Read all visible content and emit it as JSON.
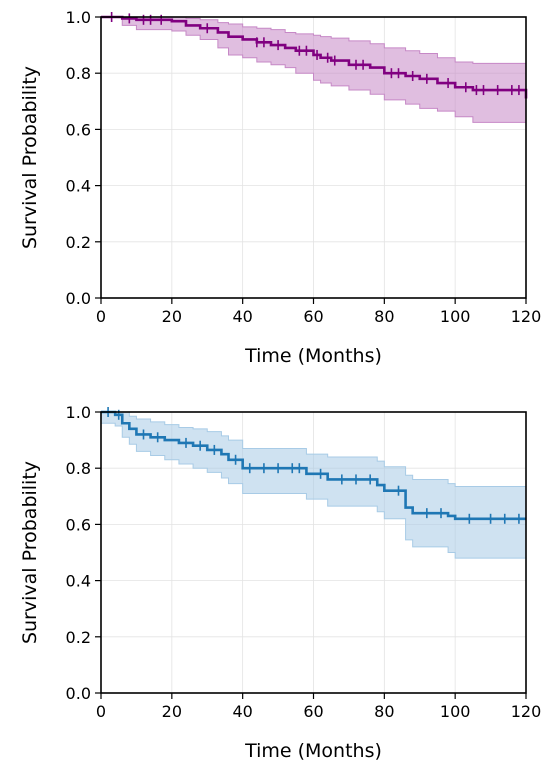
{
  "chart_data": [
    {
      "type": "line",
      "title": "",
      "xlabel": "Time (Months)",
      "ylabel": "Survival Probability",
      "xlim": [
        0,
        120
      ],
      "ylim": [
        0,
        1.0
      ],
      "xticks": [
        "0",
        "20",
        "40",
        "60",
        "80",
        "100",
        "120"
      ],
      "yticks": [
        "0.0",
        "0.2",
        "0.4",
        "0.6",
        "0.8",
        "1.0"
      ],
      "grid": true,
      "color": "#800080",
      "band_color": "#c688c6",
      "series": [
        {
          "step": true,
          "x": [
            0,
            6,
            10,
            20,
            24,
            28,
            33,
            36,
            40,
            44,
            48,
            52,
            55,
            60,
            62,
            65,
            70,
            76,
            80,
            86,
            90,
            95,
            100,
            105,
            110,
            120
          ],
          "y": [
            1.0,
            0.995,
            0.99,
            0.985,
            0.97,
            0.96,
            0.945,
            0.93,
            0.92,
            0.91,
            0.9,
            0.89,
            0.88,
            0.865,
            0.855,
            0.845,
            0.83,
            0.82,
            0.8,
            0.79,
            0.78,
            0.765,
            0.75,
            0.74,
            0.74,
            0.71
          ],
          "lower": [
            1.0,
            0.97,
            0.955,
            0.95,
            0.935,
            0.92,
            0.89,
            0.865,
            0.855,
            0.84,
            0.83,
            0.82,
            0.8,
            0.775,
            0.765,
            0.755,
            0.74,
            0.725,
            0.705,
            0.69,
            0.675,
            0.665,
            0.645,
            0.625,
            0.625,
            0.58
          ],
          "upper": [
            1.0,
            1.0,
            1.0,
            1.0,
            0.995,
            0.99,
            0.98,
            0.975,
            0.965,
            0.96,
            0.955,
            0.945,
            0.94,
            0.935,
            0.93,
            0.925,
            0.915,
            0.905,
            0.89,
            0.88,
            0.87,
            0.855,
            0.84,
            0.835,
            0.835,
            0.82
          ],
          "censored": [
            3,
            8,
            12,
            14,
            17,
            30,
            44,
            46,
            50,
            56,
            58,
            61,
            64,
            66,
            72,
            74,
            82,
            84,
            88,
            92,
            98,
            103,
            106,
            108,
            112,
            116,
            118
          ]
        }
      ]
    },
    {
      "type": "line",
      "title": "",
      "xlabel": "Time (Months)",
      "ylabel": "Survival Probability",
      "xlim": [
        0,
        120
      ],
      "ylim": [
        0,
        1.0
      ],
      "xticks": [
        "0",
        "20",
        "40",
        "60",
        "80",
        "100",
        "120"
      ],
      "yticks": [
        "0.0",
        "0.2",
        "0.4",
        "0.6",
        "0.8",
        "1.0"
      ],
      "grid": true,
      "color": "#1f77b4",
      "band_color": "#a8cbe6",
      "series": [
        {
          "step": true,
          "x": [
            0,
            4,
            6,
            8,
            10,
            14,
            18,
            22,
            26,
            30,
            34,
            36,
            40,
            58,
            64,
            78,
            80,
            86,
            88,
            98,
            100,
            120
          ],
          "y": [
            1.0,
            0.99,
            0.96,
            0.94,
            0.92,
            0.91,
            0.9,
            0.89,
            0.88,
            0.865,
            0.85,
            0.83,
            0.8,
            0.78,
            0.76,
            0.74,
            0.72,
            0.66,
            0.64,
            0.63,
            0.62,
            0.62
          ],
          "lower": [
            0.96,
            0.95,
            0.91,
            0.885,
            0.86,
            0.845,
            0.83,
            0.815,
            0.8,
            0.785,
            0.765,
            0.745,
            0.71,
            0.69,
            0.665,
            0.645,
            0.62,
            0.545,
            0.52,
            0.5,
            0.48,
            0.48
          ],
          "upper": [
            1.0,
            1.0,
            1.0,
            0.985,
            0.975,
            0.965,
            0.955,
            0.945,
            0.94,
            0.93,
            0.915,
            0.9,
            0.87,
            0.85,
            0.84,
            0.825,
            0.805,
            0.775,
            0.76,
            0.745,
            0.735,
            0.735
          ],
          "censored": [
            2,
            5,
            12,
            16,
            24,
            28,
            32,
            38,
            42,
            46,
            50,
            54,
            56,
            62,
            68,
            72,
            76,
            84,
            92,
            96,
            104,
            110,
            114,
            118
          ]
        }
      ]
    }
  ]
}
